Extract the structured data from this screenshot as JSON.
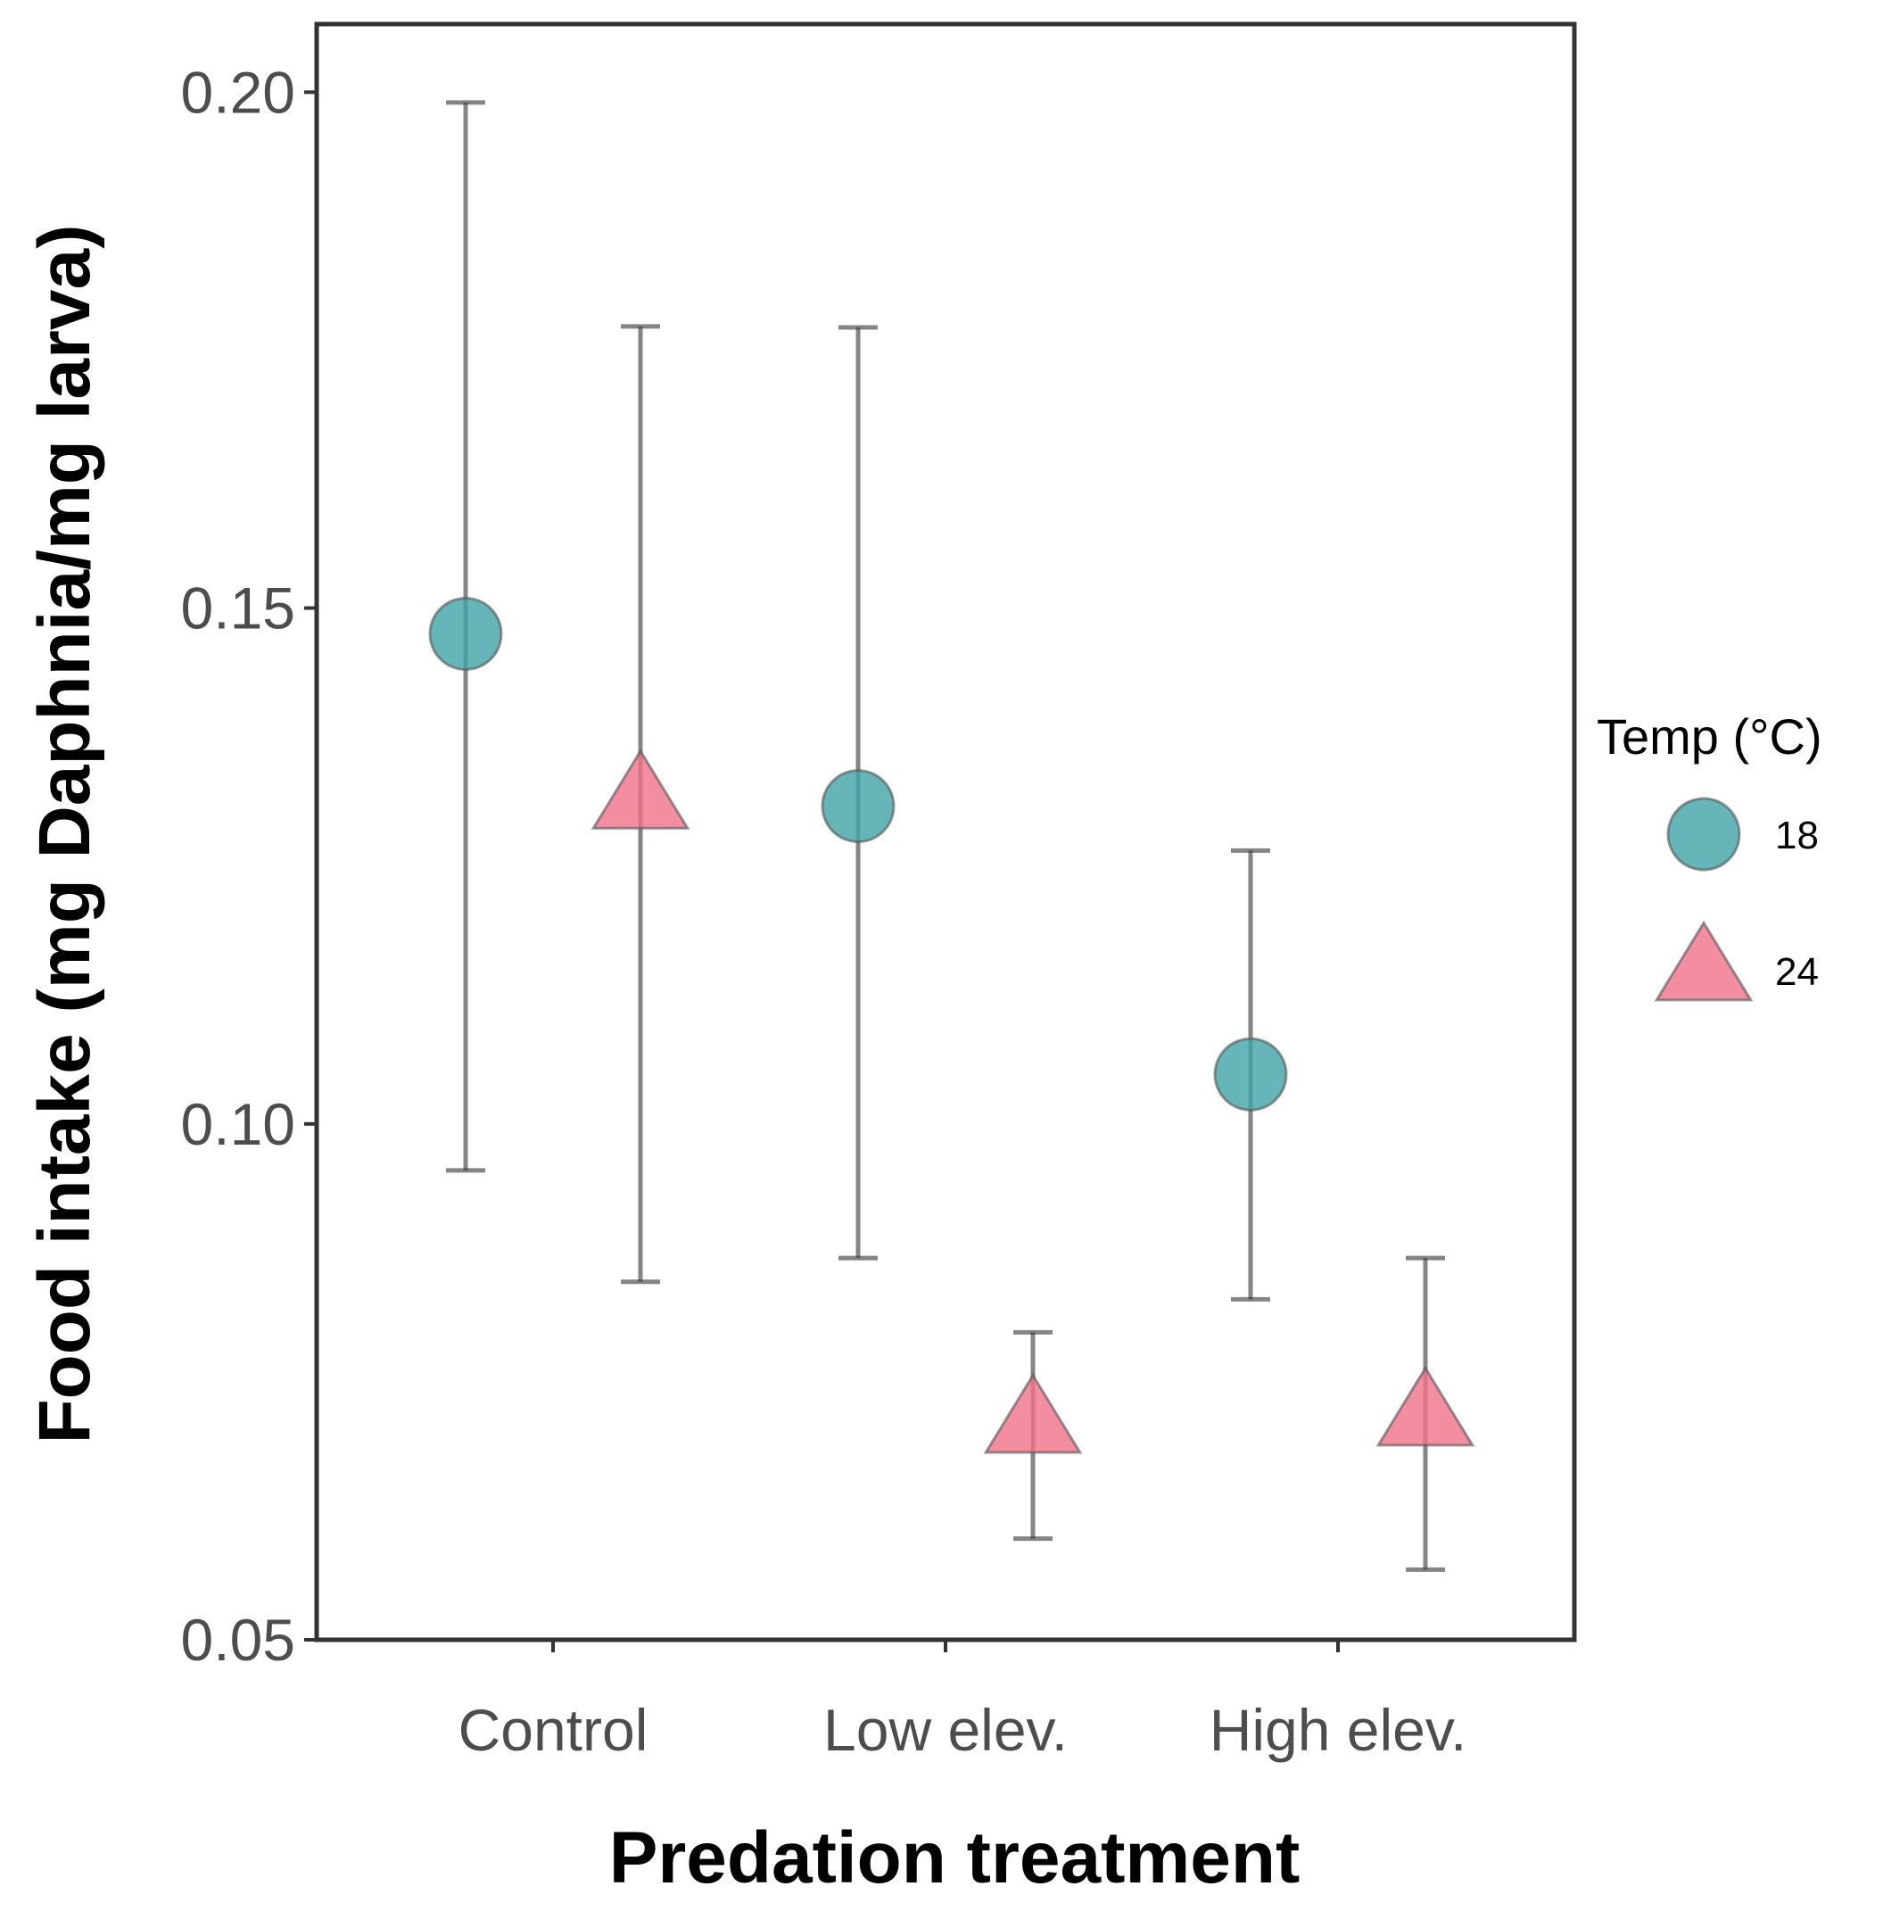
{
  "chart_data": {
    "type": "scatter",
    "xlabel": "Predation treatment",
    "ylabel": "Food intake (mg Daphnia/mg larva)",
    "categories": [
      "Control",
      "Low elev.",
      "High elev."
    ],
    "yticks": [
      "0.05",
      "0.10",
      "0.15",
      "0.20"
    ],
    "ylim": [
      0.05,
      0.2066
    ],
    "legend": {
      "title": "Temp (°C)",
      "position": "right"
    },
    "series": [
      {
        "name": "18",
        "marker": "circle",
        "color": "#3ea3a8",
        "values": [
          0.1475,
          0.1308,
          0.1048
        ],
        "lower": [
          0.0955,
          0.087,
          0.083
        ],
        "upper": [
          0.199,
          0.1772,
          0.1265
        ]
      },
      {
        "name": "24",
        "marker": "triangle",
        "color": "#f07088",
        "values": [
          0.1315,
          0.071,
          0.0717
        ],
        "lower": [
          0.0847,
          0.0598,
          0.0568
        ],
        "upper": [
          0.1773,
          0.0798,
          0.087
        ]
      }
    ]
  }
}
